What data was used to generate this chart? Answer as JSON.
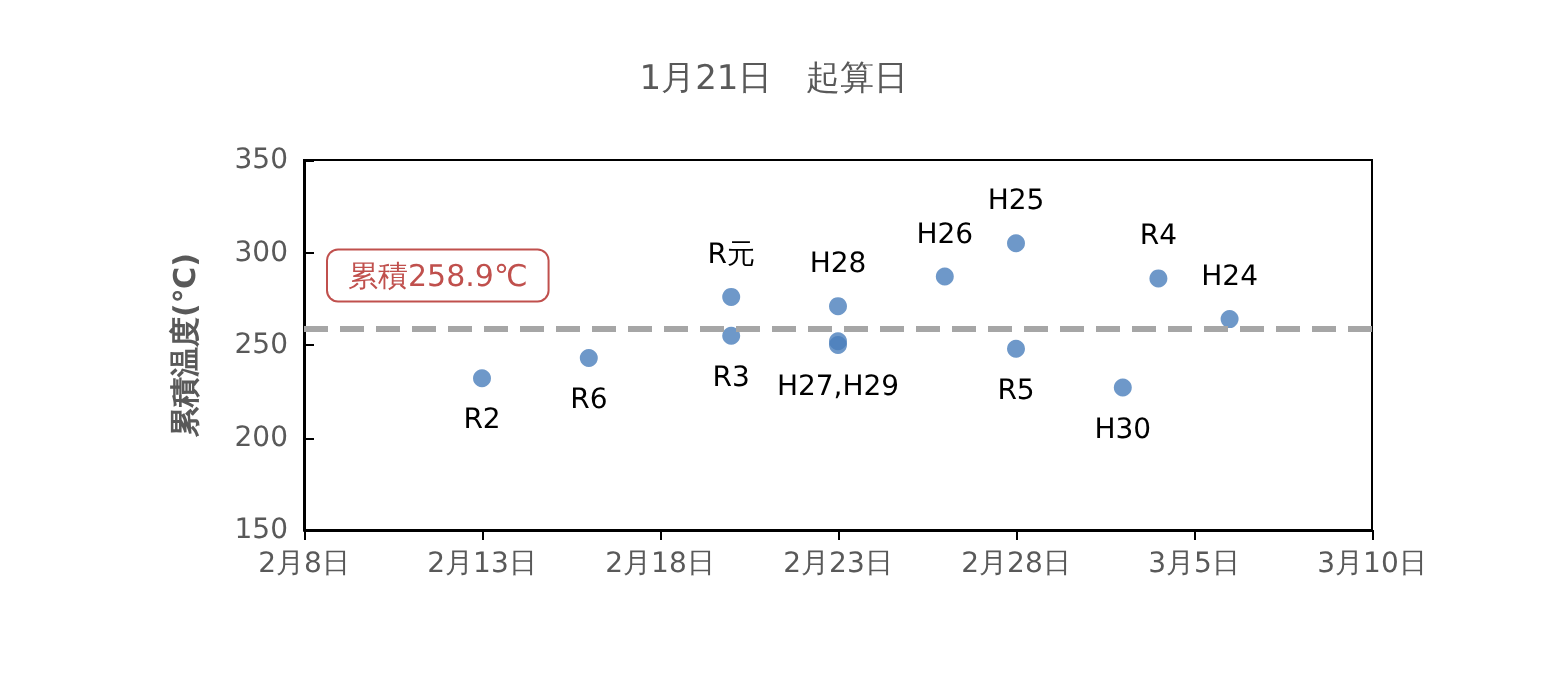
{
  "chart_data": {
    "type": "scatter",
    "title": "1月21日　起算日",
    "ylabel": "累積温度(℃)",
    "x": [
      "--02-13",
      "--02-16",
      "--02-20",
      "--02-20",
      "--02-23",
      "--02-23",
      "--02-23",
      "--02-26",
      "--02-28",
      "--02-28",
      "--03-03",
      "--03-04",
      "--03-06"
    ],
    "series": [
      {
        "color": "#4a7ebb",
        "values": [
          232,
          243,
          276,
          255,
          271,
          252,
          250,
          287,
          305,
          248,
          227,
          286,
          264
        ]
      }
    ],
    "xlim": [
      "--02-08",
      "--03-10"
    ],
    "xticks": [
      {
        "value": "--02-08",
        "label": "2月8日"
      },
      {
        "value": "--02-13",
        "label": "2月13日"
      },
      {
        "value": "--02-18",
        "label": "2月18日"
      },
      {
        "value": "--02-23",
        "label": "2月23日"
      },
      {
        "value": "--02-28",
        "label": "2月28日"
      },
      {
        "value": "--03-05",
        "label": "3月5日"
      },
      {
        "value": "--03-10",
        "label": "3月10日"
      }
    ],
    "ylim": [
      150,
      350
    ],
    "yticks": [
      150,
      200,
      250,
      300,
      350
    ],
    "ref_lines": [
      {
        "axis": "y",
        "value": 258.9,
        "label": "累積258.9℃",
        "color": "#a6a6a6",
        "line_style": "dashed"
      }
    ],
    "annotations": [
      {
        "text": "R2",
        "x": "--02-13",
        "y": 232
      },
      {
        "text": "R6",
        "x": "--02-16",
        "y": 243
      },
      {
        "text": "R元",
        "x": "--02-20",
        "y": 276
      },
      {
        "text": "R3",
        "x": "--02-20",
        "y": 255
      },
      {
        "text": "H28",
        "x": "--02-23",
        "y": 271
      },
      {
        "text": "H27,H29",
        "x": "--02-23",
        "y": 250
      },
      {
        "text": "H26",
        "x": "--02-26",
        "y": 287
      },
      {
        "text": "H25",
        "x": "--02-28",
        "y": 305
      },
      {
        "text": "R5",
        "x": "--02-28",
        "y": 248
      },
      {
        "text": "H30",
        "x": "--03-03",
        "y": 227
      },
      {
        "text": "R4",
        "x": "--03-04",
        "y": 286
      },
      {
        "text": "H24",
        "x": "--03-06",
        "y": 264
      }
    ],
    "marker": "circle",
    "grid": false
  }
}
